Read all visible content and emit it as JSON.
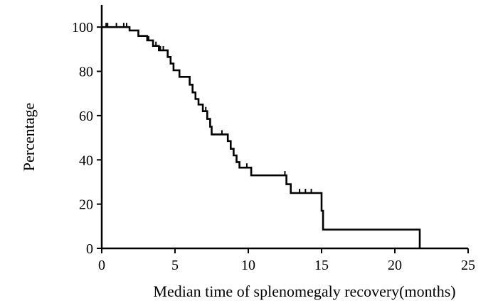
{
  "chart_data": {
    "type": "line",
    "subtype": "kaplan-meier-step",
    "title": "",
    "xlabel": "Median time of splenomegaly recovery(months)",
    "ylabel": "Percentage",
    "xlim": [
      0,
      25
    ],
    "ylim": [
      0,
      110
    ],
    "xticks": [
      0,
      5,
      10,
      15,
      20,
      25
    ],
    "yticks": [
      0,
      20,
      40,
      60,
      80,
      100
    ],
    "grid": false,
    "legend": "none",
    "line_color": "#000000",
    "series": [
      {
        "name": "Splenomegaly recovery",
        "steps": [
          [
            0,
            100
          ],
          [
            1.9,
            100
          ],
          [
            1.9,
            98.5
          ],
          [
            2.5,
            98.5
          ],
          [
            2.5,
            96
          ],
          [
            3.1,
            96
          ],
          [
            3.1,
            94
          ],
          [
            3.5,
            94
          ],
          [
            3.5,
            91.5
          ],
          [
            3.9,
            91.5
          ],
          [
            3.9,
            89.5
          ],
          [
            4.5,
            89.5
          ],
          [
            4.5,
            86.5
          ],
          [
            4.7,
            86.5
          ],
          [
            4.7,
            83.5
          ],
          [
            4.9,
            83.5
          ],
          [
            4.9,
            80.5
          ],
          [
            5.3,
            80.5
          ],
          [
            5.3,
            77.5
          ],
          [
            6.0,
            77.5
          ],
          [
            6.0,
            74
          ],
          [
            6.2,
            74
          ],
          [
            6.2,
            70.5
          ],
          [
            6.4,
            70.5
          ],
          [
            6.4,
            67.5
          ],
          [
            6.6,
            67.5
          ],
          [
            6.6,
            65
          ],
          [
            6.9,
            65
          ],
          [
            6.9,
            62
          ],
          [
            7.2,
            62
          ],
          [
            7.2,
            58.5
          ],
          [
            7.4,
            58.5
          ],
          [
            7.4,
            55
          ],
          [
            7.5,
            55
          ],
          [
            7.5,
            51.5
          ],
          [
            8.6,
            51.5
          ],
          [
            8.6,
            48.5
          ],
          [
            8.8,
            48.5
          ],
          [
            8.8,
            45
          ],
          [
            9.0,
            45
          ],
          [
            9.0,
            42
          ],
          [
            9.2,
            42
          ],
          [
            9.2,
            39
          ],
          [
            9.4,
            39
          ],
          [
            9.4,
            36.5
          ],
          [
            10.2,
            36.5
          ],
          [
            10.2,
            33
          ],
          [
            12.6,
            33
          ],
          [
            12.6,
            29
          ],
          [
            12.9,
            29
          ],
          [
            12.9,
            25
          ],
          [
            15.0,
            25
          ],
          [
            15.0,
            17
          ],
          [
            15.1,
            17
          ],
          [
            15.1,
            8.5
          ],
          [
            21.7,
            8.5
          ],
          [
            21.7,
            0
          ]
        ],
        "censored": [
          [
            0.3,
            100
          ],
          [
            0.4,
            100
          ],
          [
            1.0,
            100
          ],
          [
            1.5,
            100
          ],
          [
            1.7,
            100
          ],
          [
            3.2,
            94
          ],
          [
            3.7,
            91.5
          ],
          [
            4.0,
            89.5
          ],
          [
            4.2,
            89.5
          ],
          [
            7.1,
            62
          ],
          [
            8.2,
            51.5
          ],
          [
            9.9,
            36.5
          ],
          [
            12.5,
            33
          ],
          [
            13.5,
            25
          ],
          [
            13.9,
            25
          ],
          [
            14.3,
            25
          ]
        ]
      }
    ]
  }
}
